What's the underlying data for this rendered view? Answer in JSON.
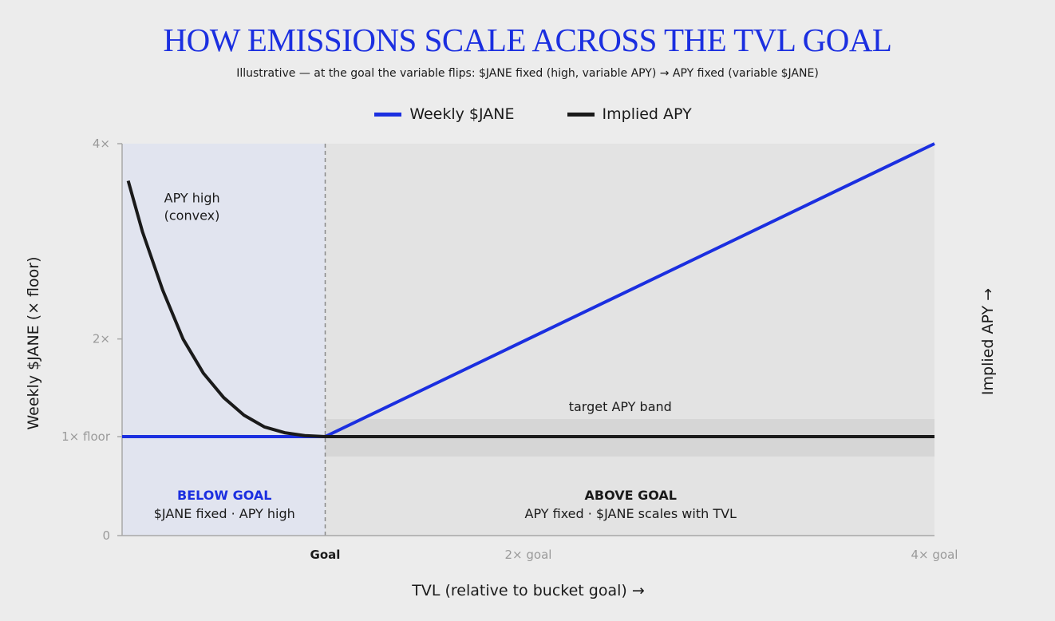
{
  "title": "HOW EMISSIONS SCALE ACROSS THE TVL GOAL",
  "subtitle": "Illustrative — at the goal the variable flips: $JANE fixed (high, variable APY) → APY fixed (variable $JANE)",
  "colors": {
    "weekly_jane": "#1b2fe0",
    "implied_apy": "#1a1a1a",
    "below_goal_region": "#e1e4ef",
    "above_goal_region": "#e3e3e3",
    "target_band": "#d6d6d6",
    "below_label": "#1b2fe0",
    "above_label": "#1a1a1a"
  },
  "chart_data": {
    "type": "line",
    "xlabel": "TVL (relative to bucket goal) →",
    "ylabel": "Weekly $JANE (× floor)",
    "y2label": "Implied APY →",
    "xlim": [
      0,
      4
    ],
    "ylim": [
      0,
      4
    ],
    "x_ticks": [
      {
        "value": 1,
        "label": "Goal",
        "emphasis": true
      },
      {
        "value": 2,
        "label": "2× goal",
        "emphasis": false
      },
      {
        "value": 4,
        "label": "4× goal",
        "emphasis": false
      }
    ],
    "y_ticks": [
      {
        "value": 0,
        "label": "0"
      },
      {
        "value": 1,
        "label": "1× floor"
      },
      {
        "value": 2,
        "label": "2×"
      },
      {
        "value": 4,
        "label": "4×"
      }
    ],
    "goal_x": 1,
    "series": [
      {
        "name": "Weekly $JANE",
        "color": "#1b2fe0",
        "x": [
          0,
          1,
          4
        ],
        "y": [
          1,
          1,
          4
        ]
      },
      {
        "name": "Implied APY",
        "color": "#1a1a1a",
        "x": [
          0.03,
          0.1,
          0.2,
          0.3,
          0.4,
          0.5,
          0.6,
          0.7,
          0.8,
          0.9,
          1.0,
          2.0,
          4.0
        ],
        "y": [
          3.62,
          3.1,
          2.5,
          2.0,
          1.65,
          1.4,
          1.22,
          1.1,
          1.04,
          1.01,
          1.0,
          1.0,
          1.0
        ]
      }
    ],
    "regions": [
      {
        "x": [
          0,
          1
        ],
        "heading": "BELOW GOAL",
        "sub": "$JANE fixed · APY high"
      },
      {
        "x": [
          1,
          4
        ],
        "heading": "ABOVE GOAL",
        "sub": "APY fixed · $JANE scales with TVL"
      }
    ],
    "band": {
      "y": [
        0.8,
        1.18
      ],
      "label": "target APY band"
    },
    "annotations": [
      {
        "text": "APY high",
        "x": 0.14,
        "y": 3.4
      },
      {
        "text": "(convex)",
        "x": 0.14,
        "y": 3.22
      }
    ],
    "legend": "top-center"
  }
}
